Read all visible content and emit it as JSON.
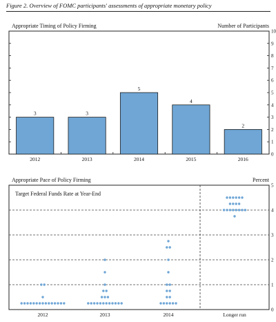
{
  "figure": {
    "title": "Figure 2. Overview of FOMC participants' assessments of appropriate monetary policy"
  },
  "chart_data": [
    {
      "type": "bar",
      "title": "Appropriate Timing of Policy Firming",
      "ylabel": "Number of Participants",
      "categories": [
        "2012",
        "2013",
        "2014",
        "2015",
        "2016"
      ],
      "values": [
        3,
        3,
        5,
        4,
        2
      ],
      "ylim": [
        0,
        10
      ],
      "yticks": [
        "0",
        "1",
        "2",
        "3",
        "4",
        "5",
        "6",
        "7",
        "8",
        "9",
        "10"
      ],
      "grid": false,
      "bar_color": "#6fa6d6",
      "bar_edge_color": "#1a1a1a"
    },
    {
      "type": "scatter",
      "title": "Appropriate Pace of Policy Firming",
      "subtitle": "Target Federal Funds Rate at Year-End",
      "ylabel": "Percent",
      "categories": [
        "2012",
        "2013",
        "2014",
        "Longer run"
      ],
      "ylim": [
        0,
        5
      ],
      "yticks": [
        "0",
        "1",
        "2",
        "3",
        "4",
        "5"
      ],
      "grid": true,
      "dot_color": "#6fa6d6",
      "groups": [
        {
          "category": "2012",
          "rates": [
            {
              "rate": 0.25,
              "count": 15
            },
            {
              "rate": 0.5,
              "count": 1
            },
            {
              "rate": 1.0,
              "count": 2
            }
          ]
        },
        {
          "category": "2013",
          "rates": [
            {
              "rate": 0.25,
              "count": 12
            },
            {
              "rate": 0.5,
              "count": 3
            },
            {
              "rate": 0.75,
              "count": 2
            },
            {
              "rate": 1.0,
              "count": 1
            },
            {
              "rate": 1.5,
              "count": 1
            },
            {
              "rate": 2.0,
              "count": 1
            }
          ]
        },
        {
          "category": "2014",
          "rates": [
            {
              "rate": 0.25,
              "count": 6
            },
            {
              "rate": 0.5,
              "count": 2
            },
            {
              "rate": 0.75,
              "count": 2
            },
            {
              "rate": 1.0,
              "count": 2
            },
            {
              "rate": 1.5,
              "count": 1
            },
            {
              "rate": 2.0,
              "count": 1
            },
            {
              "rate": 2.5,
              "count": 2
            },
            {
              "rate": 2.75,
              "count": 1
            }
          ]
        },
        {
          "category": "Longer run",
          "rates": [
            {
              "rate": 3.75,
              "count": 1
            },
            {
              "rate": 4.0,
              "count": 8
            },
            {
              "rate": 4.25,
              "count": 4
            },
            {
              "rate": 4.5,
              "count": 6
            }
          ]
        }
      ]
    }
  ]
}
